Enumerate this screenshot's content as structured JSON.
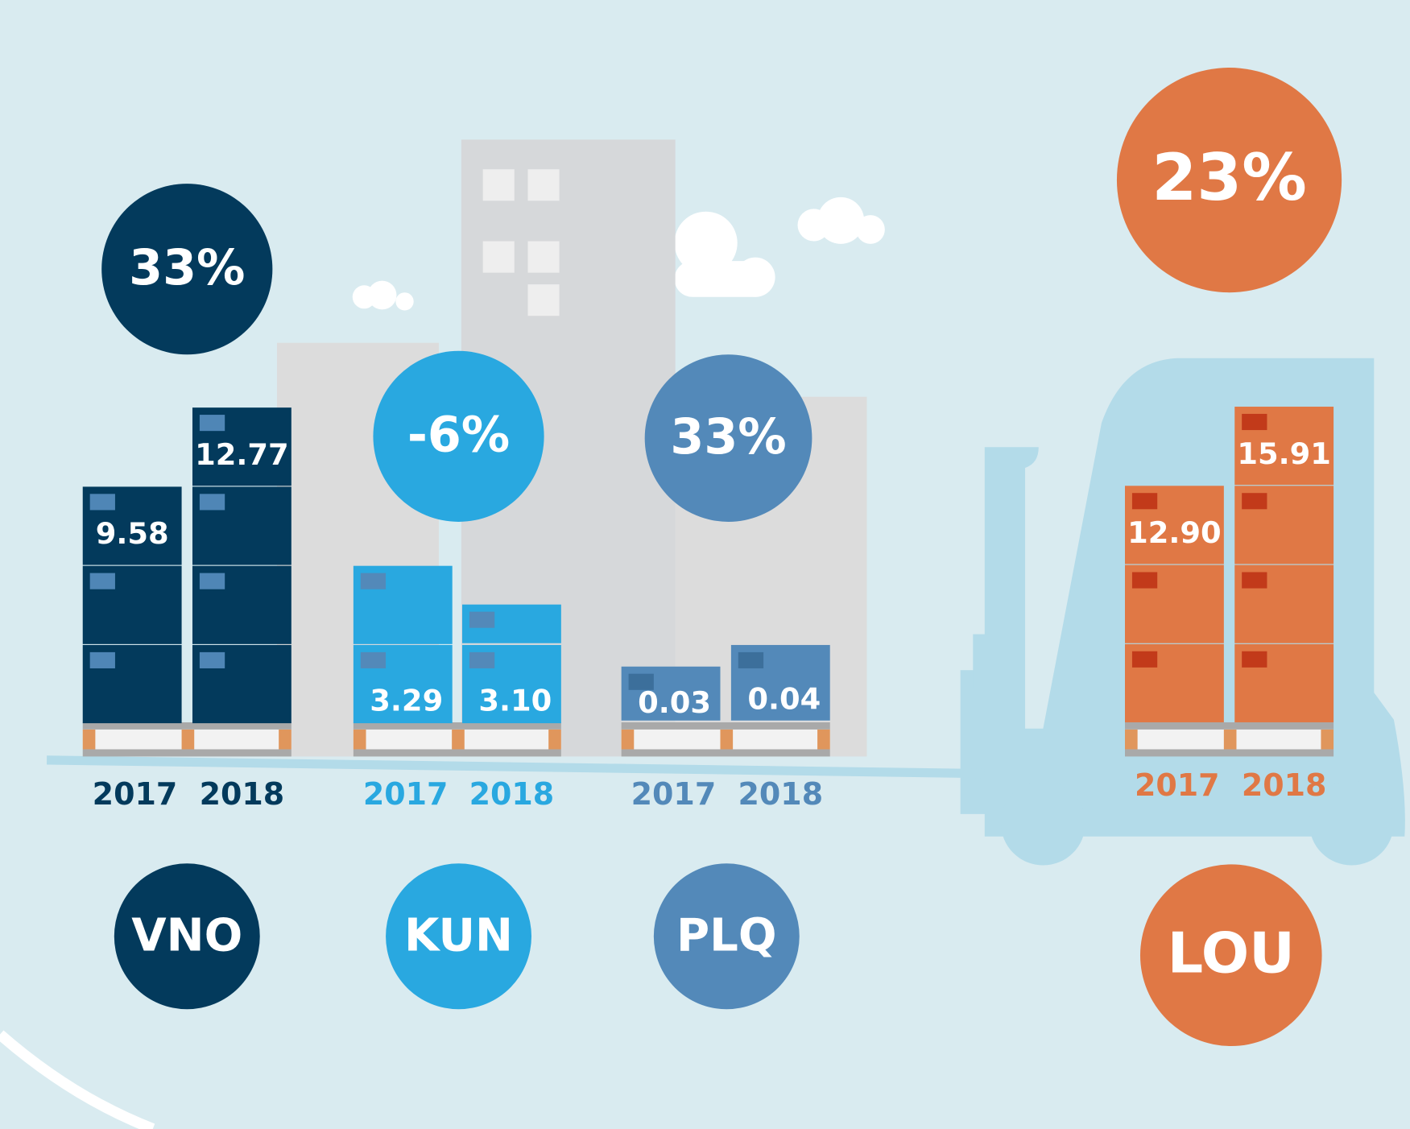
{
  "groups": [
    {
      "code": "VNO",
      "change": "33%",
      "years": [
        "2017",
        "2018"
      ],
      "values": [
        "9.58",
        "12.77"
      ]
    },
    {
      "code": "KUN",
      "change": "-6%",
      "years": [
        "2017",
        "2018"
      ],
      "values": [
        "3.29",
        "3.10"
      ]
    },
    {
      "code": "PLQ",
      "change": "33%",
      "years": [
        "2017",
        "2018"
      ],
      "values": [
        "0.03",
        "0.04"
      ]
    },
    {
      "code": "LOU",
      "change": "23%",
      "years": [
        "2017",
        "2018"
      ],
      "values": [
        "12.90",
        "15.91"
      ]
    }
  ]
}
